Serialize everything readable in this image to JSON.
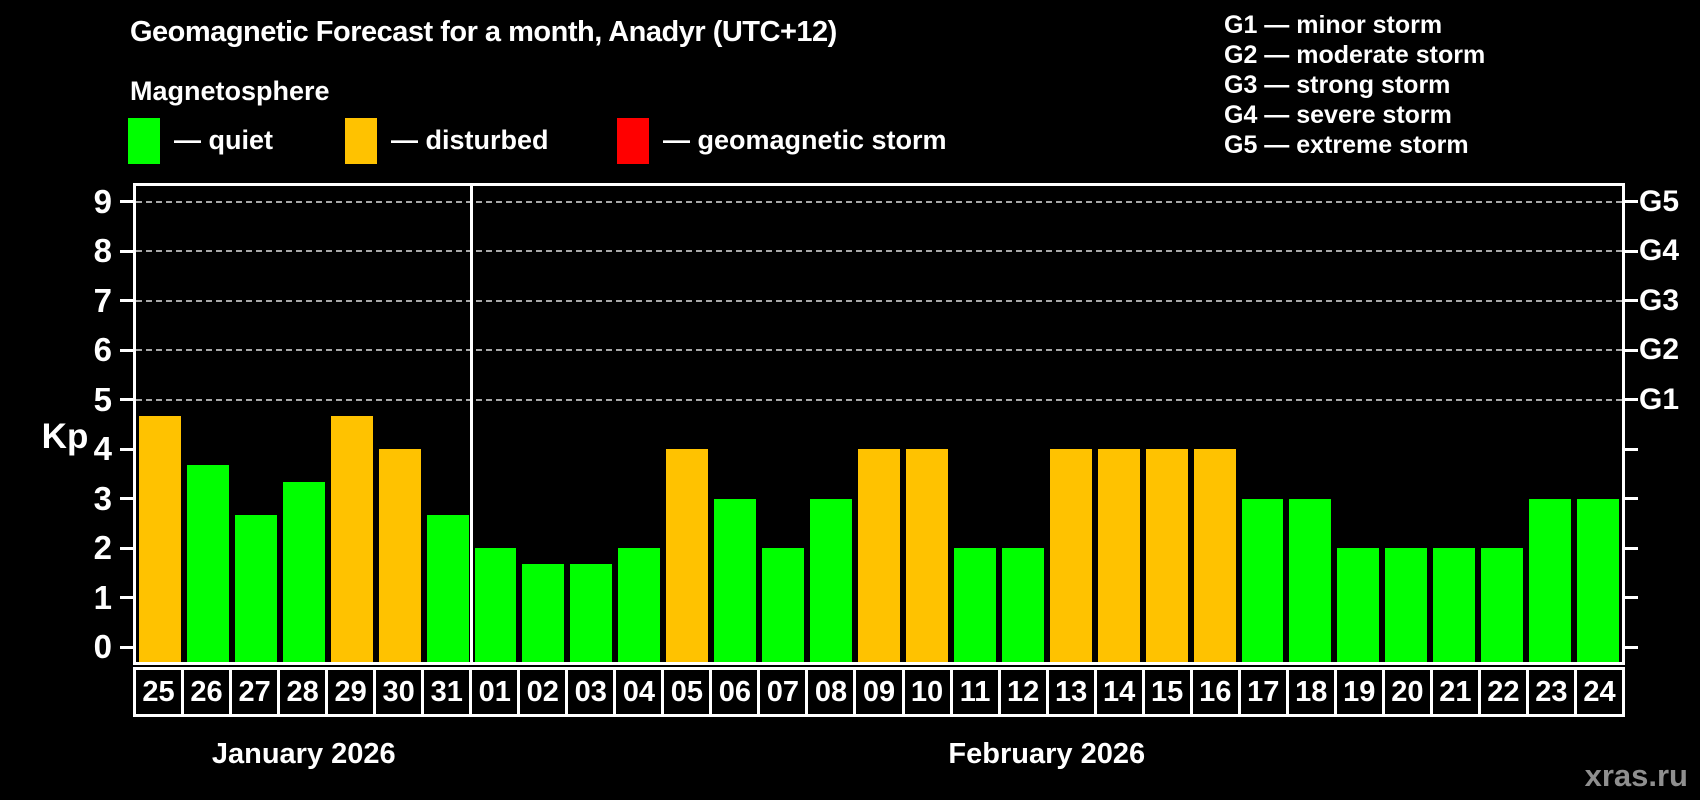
{
  "header": {
    "subtitle": "Magnetosphere",
    "legend": [
      {
        "label": "— quiet",
        "color": "#00ff00"
      },
      {
        "label": "— disturbed",
        "color": "#ffc200"
      },
      {
        "label": "— geomagnetic storm",
        "color": "#ff0000"
      }
    ]
  },
  "storm_legend": [
    "G1 — minor storm",
    "G2 — moderate storm",
    "G3 — strong storm",
    "G4 — severe storm",
    "G5 — extreme storm"
  ],
  "chart_data": {
    "type": "bar",
    "title": "Geomagnetic Forecast for a month, Anadyr (UTC+12)",
    "ylabel": "Kp",
    "ylim": [
      -0.3,
      9.4
    ],
    "yticks": [
      0,
      1,
      2,
      3,
      4,
      5,
      6,
      7,
      8,
      9
    ],
    "grid_levels": [
      5,
      6,
      7,
      8,
      9
    ],
    "grid_style": "dashed",
    "legend_position": "top",
    "right_axis": [
      {
        "level": 5,
        "label": "G1"
      },
      {
        "level": 6,
        "label": "G2"
      },
      {
        "level": 7,
        "label": "G3"
      },
      {
        "level": 8,
        "label": "G4"
      },
      {
        "level": 9,
        "label": "G5"
      }
    ],
    "categories": [
      "25",
      "26",
      "27",
      "28",
      "29",
      "30",
      "31",
      "01",
      "02",
      "03",
      "04",
      "05",
      "06",
      "07",
      "08",
      "09",
      "10",
      "11",
      "12",
      "13",
      "14",
      "15",
      "16",
      "17",
      "18",
      "19",
      "20",
      "21",
      "22",
      "23",
      "24"
    ],
    "values": [
      4.67,
      3.67,
      2.67,
      3.33,
      4.67,
      4.0,
      2.67,
      2.0,
      1.67,
      1.67,
      2.0,
      4.0,
      3.0,
      2.0,
      3.0,
      4.0,
      4.0,
      2.0,
      2.0,
      4.0,
      4.0,
      4.0,
      4.0,
      3.0,
      3.0,
      2.0,
      2.0,
      2.0,
      2.0,
      3.0,
      3.0
    ],
    "statuses": [
      "disturbed",
      "quiet",
      "quiet",
      "quiet",
      "disturbed",
      "disturbed",
      "quiet",
      "quiet",
      "quiet",
      "quiet",
      "quiet",
      "disturbed",
      "quiet",
      "quiet",
      "quiet",
      "disturbed",
      "disturbed",
      "quiet",
      "quiet",
      "disturbed",
      "disturbed",
      "disturbed",
      "disturbed",
      "quiet",
      "quiet",
      "quiet",
      "quiet",
      "quiet",
      "quiet",
      "quiet",
      "quiet"
    ],
    "colors": {
      "quiet": "#00ff00",
      "disturbed": "#ffc200",
      "storm": "#ff0000"
    },
    "months": [
      {
        "label": "January 2026",
        "days": 7
      },
      {
        "label": "February 2026",
        "days": 24
      }
    ]
  },
  "watermark": "xras.ru"
}
